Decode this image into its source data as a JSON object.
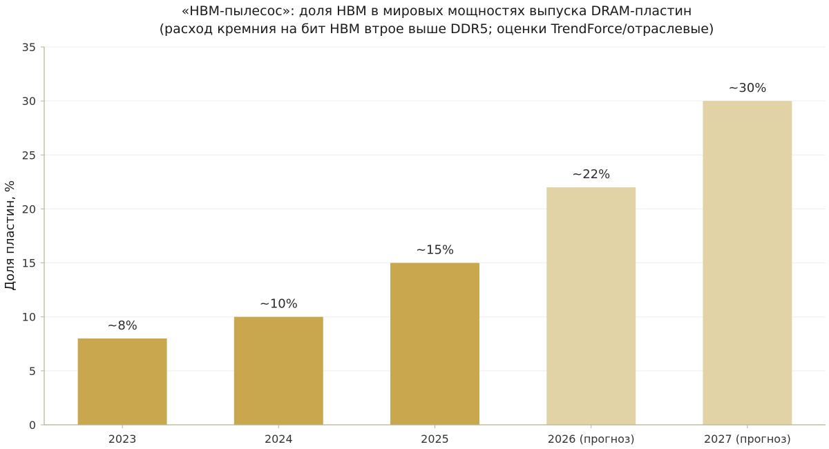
{
  "chart_data": {
    "type": "bar",
    "title_lines": [
      "«HBM‑пылесос»: доля HBM в мировых мощностях выпуска DRAM‑пластин",
      "(расход кремния на бит HBM втрое выше DDR5; оценки TrendForce/отраслевые)"
    ],
    "xlabel": "",
    "ylabel": "Доля пластин, %",
    "ylim": [
      0,
      35
    ],
    "yticks": [
      0,
      5,
      10,
      15,
      20,
      25,
      30,
      35
    ],
    "grid": "horizontal",
    "categories": [
      "2023",
      "2024",
      "2025",
      "2026 (прогноз)",
      "2027 (прогноз)"
    ],
    "values": [
      8,
      10,
      15,
      22,
      30
    ],
    "data_labels": [
      "~8%",
      "~10%",
      "~15%",
      "~22%",
      "~30%"
    ],
    "forecast": [
      false,
      false,
      false,
      true,
      true
    ],
    "colors": {
      "actual": "#c9a74e",
      "forecast": "#e2d3a6",
      "axis": "#b9b190",
      "grid": "#eeeeee"
    }
  }
}
